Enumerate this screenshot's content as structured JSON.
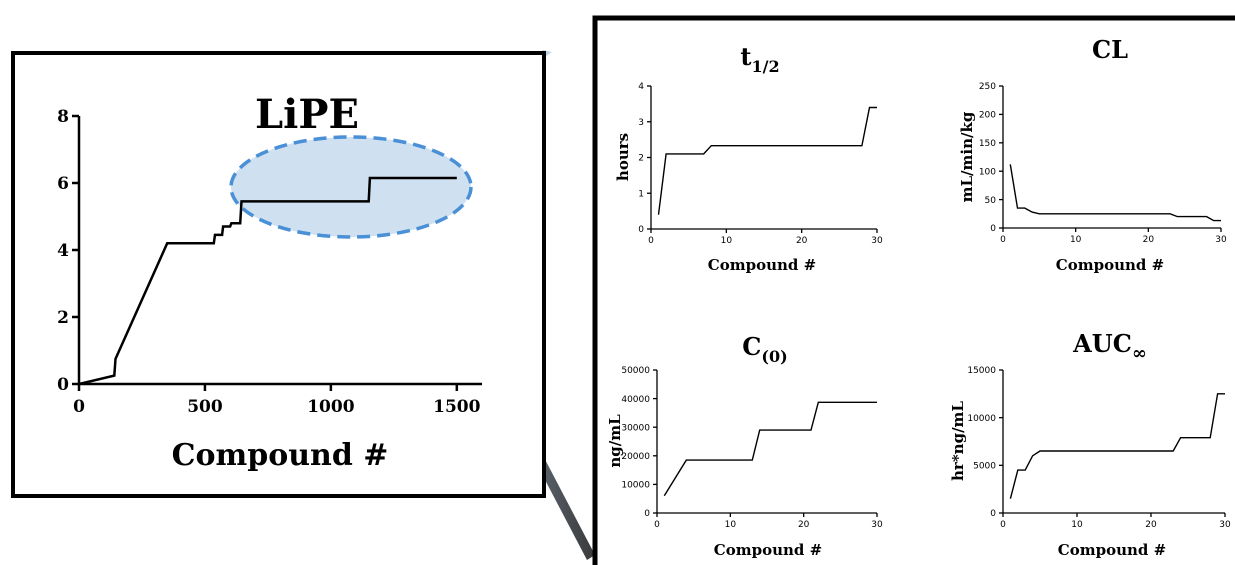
{
  "chart_data": [
    {
      "id": "lipe",
      "type": "line",
      "title": "LiPE",
      "xlabel": "Compound #",
      "ylabel": "",
      "xlim": [
        0,
        1600
      ],
      "ylim": [
        0,
        8
      ],
      "xticks": [
        "0",
        "500",
        "1000",
        "1500"
      ],
      "yticks": [
        "0",
        "2",
        "4",
        "6",
        "8"
      ],
      "series": [
        {
          "x": [
            0,
            140,
            145,
            350,
            535,
            540,
            568,
            572,
            600,
            605,
            640,
            645,
            1150,
            1155,
            1500
          ],
          "y": [
            0,
            0.25,
            0.75,
            4.2,
            4.2,
            4.45,
            4.45,
            4.7,
            4.7,
            4.8,
            4.8,
            5.45,
            5.45,
            6.15,
            6.15
          ]
        }
      ],
      "highlight": "ellipse around compounds ~600-1500"
    },
    {
      "id": "t_half",
      "type": "line",
      "title_main": "t",
      "title_sub": "1/2",
      "xlabel": "Compound #",
      "ylabel": "hours",
      "xlim": [
        0,
        30
      ],
      "ylim": [
        0,
        4
      ],
      "xticks": [
        "0",
        "10",
        "20",
        "30"
      ],
      "yticks": [
        "0",
        "1",
        "2",
        "3",
        "4"
      ],
      "series": [
        {
          "x": [
            1,
            2,
            7,
            8,
            28,
            29,
            30
          ],
          "y": [
            0.4,
            2.1,
            2.1,
            2.33,
            2.33,
            3.4,
            3.4
          ]
        }
      ]
    },
    {
      "id": "cl",
      "type": "line",
      "title_main": "CL",
      "title_sub": "",
      "xlabel": "Compound #",
      "ylabel": "mL/min/kg",
      "xlim": [
        0,
        30
      ],
      "ylim": [
        0,
        250
      ],
      "xticks": [
        "0",
        "10",
        "20",
        "30"
      ],
      "yticks": [
        "0",
        "50",
        "100",
        "150",
        "200",
        "250"
      ],
      "series": [
        {
          "x": [
            1,
            2,
            3,
            4,
            5,
            23,
            24,
            28,
            29,
            30
          ],
          "y": [
            112,
            35,
            35,
            28,
            25,
            25,
            20,
            20,
            13,
            13
          ]
        }
      ]
    },
    {
      "id": "c0",
      "type": "line",
      "title_main": "C",
      "title_sub": "(0)",
      "xlabel": "Compound #",
      "ylabel": "ng/mL",
      "xlim": [
        0,
        30
      ],
      "ylim": [
        0,
        50000
      ],
      "xticks": [
        "0",
        "10",
        "20",
        "30"
      ],
      "yticks": [
        "0",
        "10000",
        "20000",
        "30000",
        "40000",
        "50000"
      ],
      "series": [
        {
          "x": [
            1,
            4,
            13,
            14,
            21,
            22,
            30
          ],
          "y": [
            6000,
            18500,
            18500,
            29000,
            29000,
            38700,
            38700
          ]
        }
      ]
    },
    {
      "id": "auc",
      "type": "line",
      "title_main": "AUC",
      "title_sub": "∞",
      "xlabel": "Compound #",
      "ylabel": "hr*ng/mL",
      "xlim": [
        0,
        30
      ],
      "ylim": [
        0,
        15000
      ],
      "xticks": [
        "0",
        "10",
        "20",
        "30"
      ],
      "yticks": [
        "0",
        "5000",
        "10000",
        "15000"
      ],
      "series": [
        {
          "x": [
            1,
            2,
            3,
            4,
            5,
            23,
            24,
            28,
            29,
            30
          ],
          "y": [
            1500,
            4500,
            4500,
            6000,
            6500,
            6500,
            7900,
            7900,
            12500,
            12500
          ]
        }
      ]
    }
  ]
}
